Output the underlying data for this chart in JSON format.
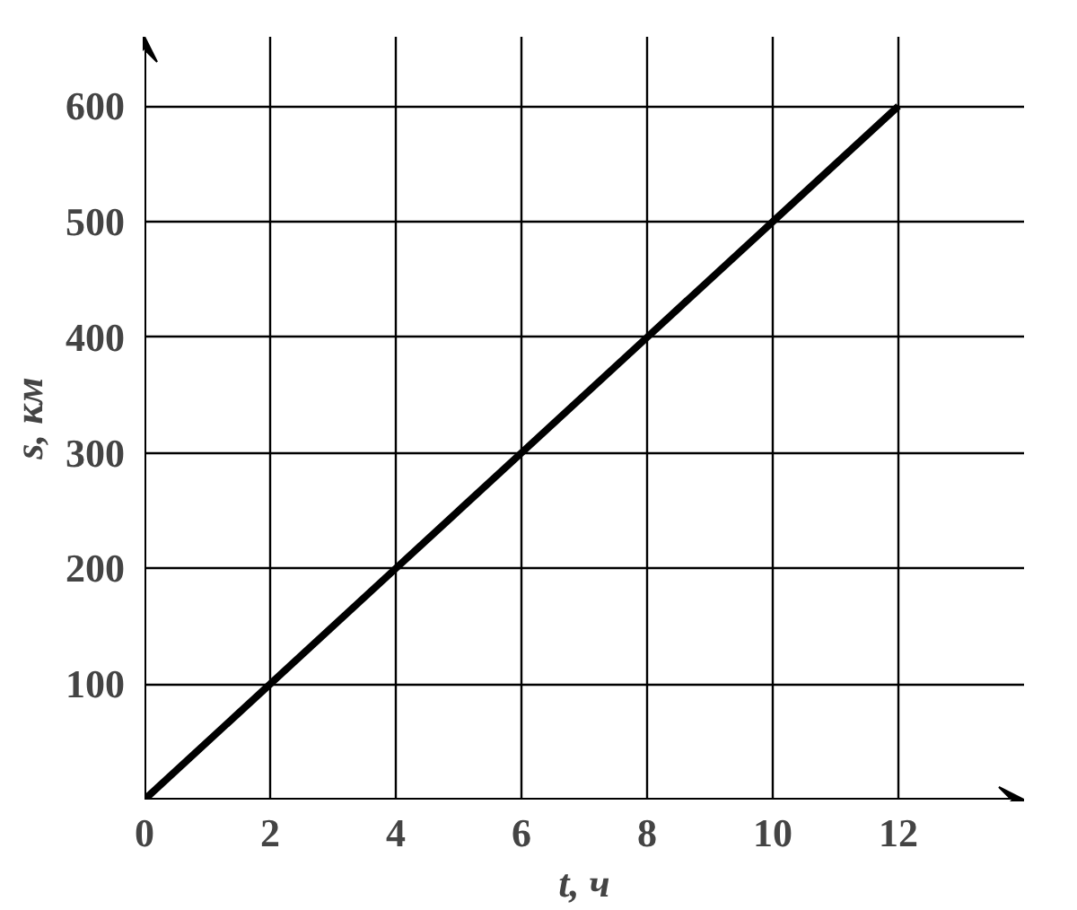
{
  "chart_data": {
    "type": "line",
    "xlabel": "t, ч",
    "ylabel": "s, км",
    "x": [
      0,
      2,
      4,
      6,
      8,
      10,
      12
    ],
    "series": [
      {
        "color": "#000000",
        "values": [
          0,
          100,
          200,
          300,
          400,
          500,
          600
        ]
      }
    ],
    "xlim": [
      0,
      14
    ],
    "ylim": [
      0,
      660
    ],
    "xticks": [
      0,
      2,
      4,
      6,
      8,
      10,
      12
    ],
    "yticks": [
      100,
      200,
      300,
      400,
      500,
      600
    ],
    "grid": true,
    "marker": "none",
    "line_style": "solid"
  }
}
